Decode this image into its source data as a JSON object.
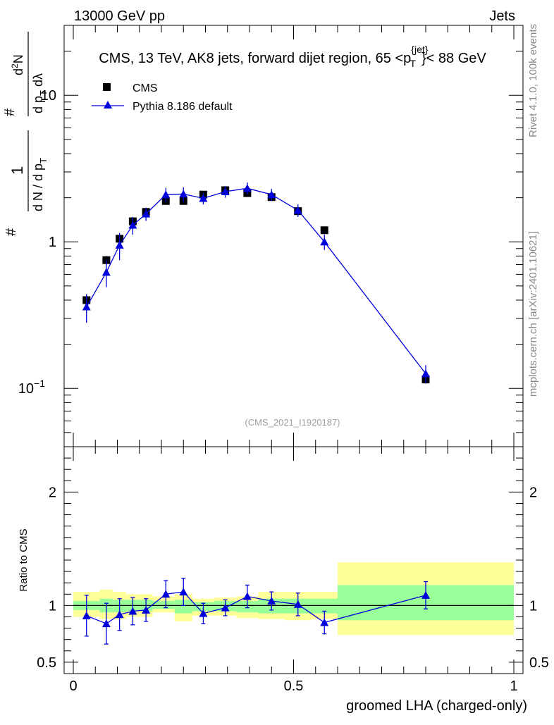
{
  "header": {
    "left": "13000 GeV pp",
    "right": "Jets"
  },
  "side": {
    "rivet": "Rivet 4.1.0,  100k events",
    "mcplots": "mcplots.cern.ch [arXiv:2401.10621]"
  },
  "colors": {
    "data": "#000000",
    "mc": "#0000dd",
    "band_yellow": "#ffff99",
    "band_green": "#99ff99"
  },
  "chart_data": [
    {
      "type": "scatter",
      "panel": "main",
      "title": "CMS, 13 TeV, AK8 jets, forward dijet region, 65 <p",
      "title_sup": "{jet}",
      "title_sub": "T",
      "title_end": "}< 88 GeV",
      "watermark": "(CMS_2021_I1920187)",
      "xlim": [
        0,
        1
      ],
      "ylim": [
        0.04,
        30
      ],
      "yscale": "log",
      "ylabel": {
        "hash": "#",
        "one": "1",
        "dN": "d N / d p",
        "dN_sub": "T",
        "d2N": "d",
        "d2N_sup": "2",
        "d2N_end": "N",
        "dpTdl": "d p",
        "dpTdl_sub": "T",
        "dpTdl_end": " dλ"
      },
      "yticks": [
        {
          "label": "10",
          "sup": "−1",
          "value": 0.1
        },
        {
          "label": "1",
          "sup": "",
          "value": 1
        },
        {
          "label": "10",
          "sup": "",
          "value": 10
        }
      ],
      "legend": [
        {
          "name": "CMS",
          "marker": "square"
        },
        {
          "name": "Pythia 8.186 default",
          "marker": "triangle"
        }
      ],
      "series": [
        {
          "name": "CMS",
          "x": [
            0.03,
            0.075,
            0.105,
            0.135,
            0.165,
            0.21,
            0.25,
            0.295,
            0.345,
            0.395,
            0.45,
            0.51,
            0.57,
            0.8
          ],
          "y": [
            0.4,
            0.75,
            1.05,
            1.38,
            1.6,
            1.9,
            1.9,
            2.1,
            2.25,
            2.15,
            2.02,
            1.62,
            1.2,
            0.115
          ],
          "yerr": [
            0.03,
            0.05,
            0.06,
            0.08,
            0.09,
            0.07,
            0.07,
            0.08,
            0.1,
            0.08,
            0.08,
            0.08,
            0.05,
            0.007
          ]
        },
        {
          "name": "Pythia 8.186 default",
          "x": [
            0.03,
            0.075,
            0.105,
            0.135,
            0.165,
            0.21,
            0.25,
            0.295,
            0.345,
            0.395,
            0.45,
            0.51,
            0.57,
            0.8
          ],
          "y": [
            0.36,
            0.62,
            0.95,
            1.3,
            1.55,
            2.1,
            2.12,
            1.98,
            2.2,
            2.32,
            2.1,
            1.64,
            1.0,
            0.126
          ],
          "yerr": [
            0.08,
            0.13,
            0.2,
            0.18,
            0.16,
            0.24,
            0.24,
            0.18,
            0.2,
            0.22,
            0.2,
            0.16,
            0.12,
            0.018
          ]
        }
      ]
    },
    {
      "type": "scatter",
      "panel": "ratio",
      "xlabel": "groomed LHA (charged-only)",
      "ylabel": "Ratio to CMS",
      "xlim": [
        0,
        1
      ],
      "ylim": [
        0.4,
        2.4
      ],
      "xticks": [
        {
          "label": "0",
          "value": 0
        },
        {
          "label": "0.5",
          "value": 0.5
        },
        {
          "label": "1",
          "value": 1
        }
      ],
      "yticks": [
        {
          "label": "0.5",
          "value": 0.5
        },
        {
          "label": "1",
          "value": 1
        },
        {
          "label": "2",
          "value": 2
        }
      ],
      "bands": {
        "edges": [
          0,
          0.06,
          0.09,
          0.12,
          0.15,
          0.18,
          0.23,
          0.27,
          0.32,
          0.37,
          0.42,
          0.48,
          0.54,
          0.6,
          1.0
        ],
        "yellow": [
          [
            0.9,
            1.12
          ],
          [
            0.88,
            1.14
          ],
          [
            0.88,
            1.12
          ],
          [
            0.9,
            1.1
          ],
          [
            0.9,
            1.1
          ],
          [
            0.94,
            1.08
          ],
          [
            0.86,
            1.1
          ],
          [
            0.91,
            1.06
          ],
          [
            0.91,
            1.07
          ],
          [
            0.89,
            1.08
          ],
          [
            0.88,
            1.12
          ],
          [
            0.87,
            1.12
          ],
          [
            0.88,
            1.12
          ],
          [
            0.74,
            1.38
          ]
        ],
        "green": [
          [
            0.96,
            1.04
          ],
          [
            0.94,
            1.06
          ],
          [
            0.94,
            1.05
          ],
          [
            0.95,
            1.05
          ],
          [
            0.95,
            1.05
          ],
          [
            0.97,
            1.04
          ],
          [
            0.93,
            1.05
          ],
          [
            0.95,
            1.03
          ],
          [
            0.95,
            1.04
          ],
          [
            0.94,
            1.04
          ],
          [
            0.93,
            1.06
          ],
          [
            0.93,
            1.06
          ],
          [
            0.93,
            1.06
          ],
          [
            0.87,
            1.18
          ]
        ]
      },
      "series": [
        {
          "name": "Pythia 8.186 default",
          "x": [
            0.03,
            0.075,
            0.105,
            0.135,
            0.165,
            0.21,
            0.25,
            0.295,
            0.345,
            0.395,
            0.45,
            0.51,
            0.57,
            0.8
          ],
          "y": [
            0.91,
            0.84,
            0.92,
            0.95,
            0.96,
            1.1,
            1.12,
            0.93,
            0.98,
            1.08,
            1.04,
            1.01,
            0.85,
            1.09
          ],
          "yerr": [
            0.18,
            0.18,
            0.14,
            0.12,
            0.1,
            0.12,
            0.12,
            0.09,
            0.07,
            0.1,
            0.08,
            0.1,
            0.1,
            0.12
          ]
        }
      ]
    }
  ]
}
